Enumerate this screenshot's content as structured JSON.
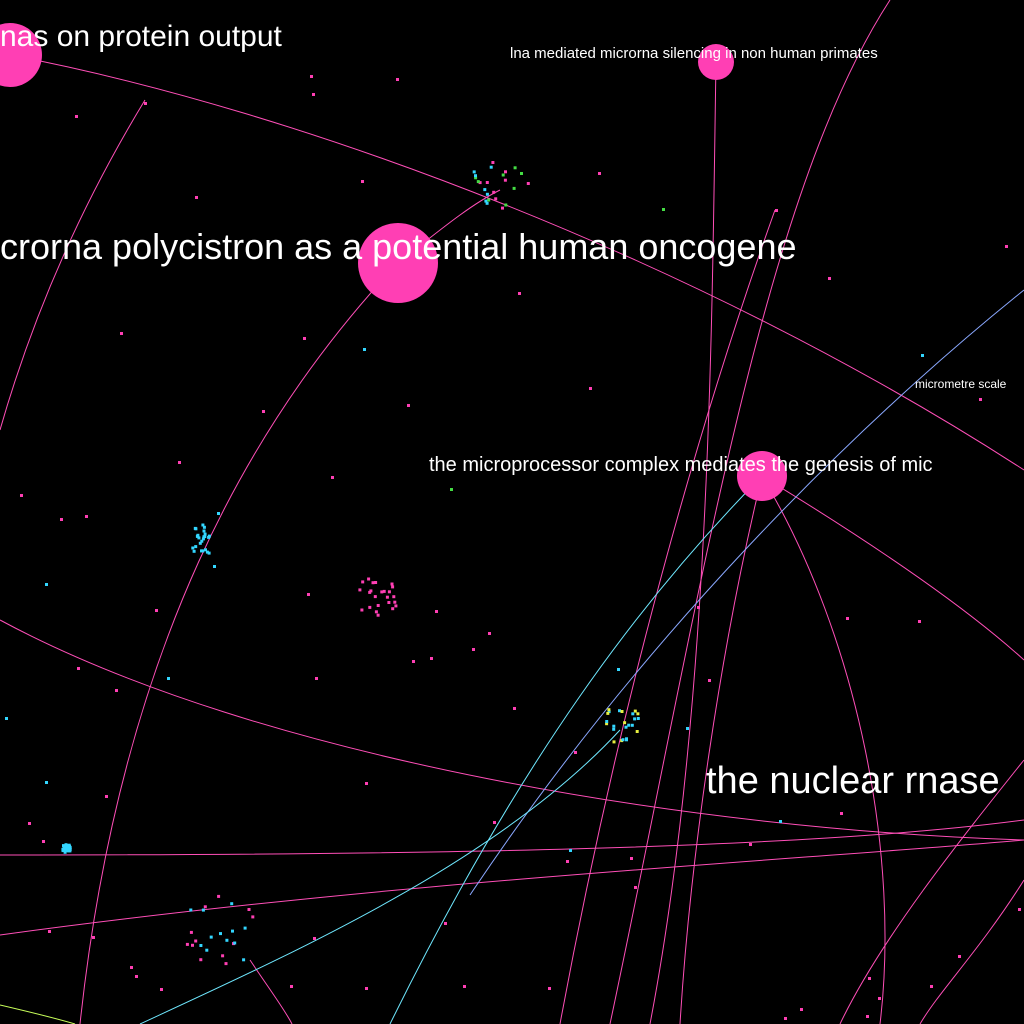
{
  "graph": {
    "background": "#000000",
    "colors": {
      "node": "#ff3fb4",
      "edge_pink": "#ff4fb8",
      "edge_cyan": "#6fe8ff",
      "edge_blue": "#8aa8ff",
      "edge_green": "#c8ff5a",
      "dot_pink": "#ff3fb4",
      "dot_cyan": "#33d6ff",
      "dot_green": "#44dd44",
      "dot_yellow": "#e8f040",
      "label": "#ffffff"
    },
    "labels": {
      "protein_output": "nas on protein output",
      "lna_silencing": "lna mediated microrna silencing in non human primates",
      "polycistron": "crorna polycistron as a potential human oncogene",
      "micrometre": "micrometre scale",
      "microprocessor": "the microprocessor complex mediates the genesis of mic",
      "nuclear_rnase": "the nuclear rnase"
    }
  }
}
